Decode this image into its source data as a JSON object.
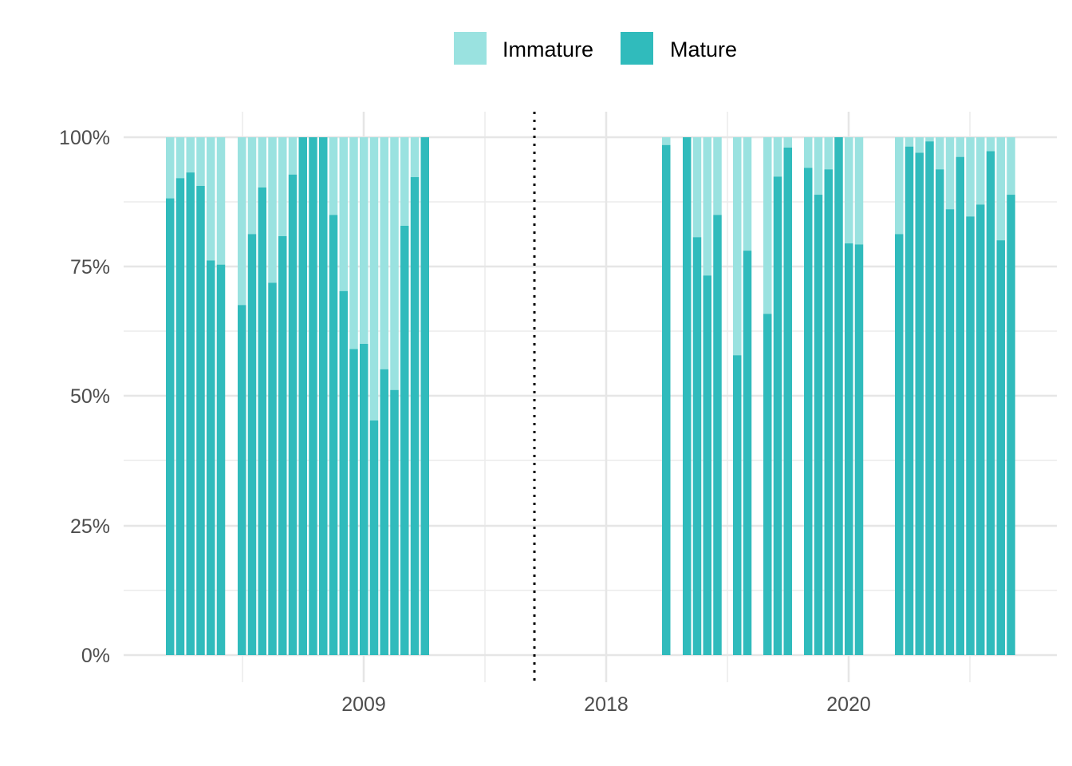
{
  "legend": {
    "items": [
      {
        "label": "Immature",
        "color": "#9ae2e0"
      },
      {
        "label": "Mature",
        "color": "#30bbbc"
      }
    ]
  },
  "chart_data": {
    "type": "bar",
    "stacked": true,
    "y_axis": {
      "range": [
        0,
        100
      ],
      "format": "percent",
      "ticks": [
        {
          "value": 0,
          "label": "0%"
        },
        {
          "value": 25,
          "label": "25%"
        },
        {
          "value": 50,
          "label": "50%"
        },
        {
          "value": 75,
          "label": "75%"
        },
        {
          "value": 100,
          "label": "100%"
        }
      ]
    },
    "x_axis": {
      "tick_labels": [
        "2009",
        "2018",
        "2020"
      ]
    },
    "separator": {
      "style": "dotted",
      "color": "#000000"
    },
    "grid": true,
    "legend_position": "top",
    "series": [
      {
        "name": "Mature",
        "color": "#30bbbc"
      },
      {
        "name": "Immature",
        "color": "#9ae2e0"
      }
    ],
    "groups": [
      {
        "period": "2009",
        "mature_percent": [
          88.2,
          92.1,
          93.2,
          90.6,
          76.2,
          75.4
        ]
      },
      {
        "period": "2009",
        "mature_percent": [
          67.6,
          81.3,
          90.3,
          71.9,
          80.9,
          92.8,
          100,
          100,
          100,
          85.0,
          70.3,
          59.1,
          60.1,
          45.3,
          55.2,
          51.2,
          82.9,
          92.3,
          100
        ]
      },
      {
        "period": "2018",
        "mature_percent": [
          98.5
        ]
      },
      {
        "period": "2018",
        "mature_percent": [
          100,
          80.7,
          73.3,
          85.0
        ]
      },
      {
        "period": "2020",
        "mature_percent": [
          57.9,
          78.1
        ]
      },
      {
        "period": "2020",
        "mature_percent": [
          65.9,
          92.4,
          98.0
        ]
      },
      {
        "period": "2020",
        "mature_percent": [
          94.1,
          88.9,
          93.8,
          100,
          79.5,
          79.3
        ]
      },
      {
        "period": "2020",
        "mature_percent": [
          81.3,
          98.2,
          97.0,
          99.2,
          93.8,
          86.1,
          96.2,
          84.7,
          87.0,
          97.3,
          80.1,
          88.9
        ]
      }
    ]
  }
}
